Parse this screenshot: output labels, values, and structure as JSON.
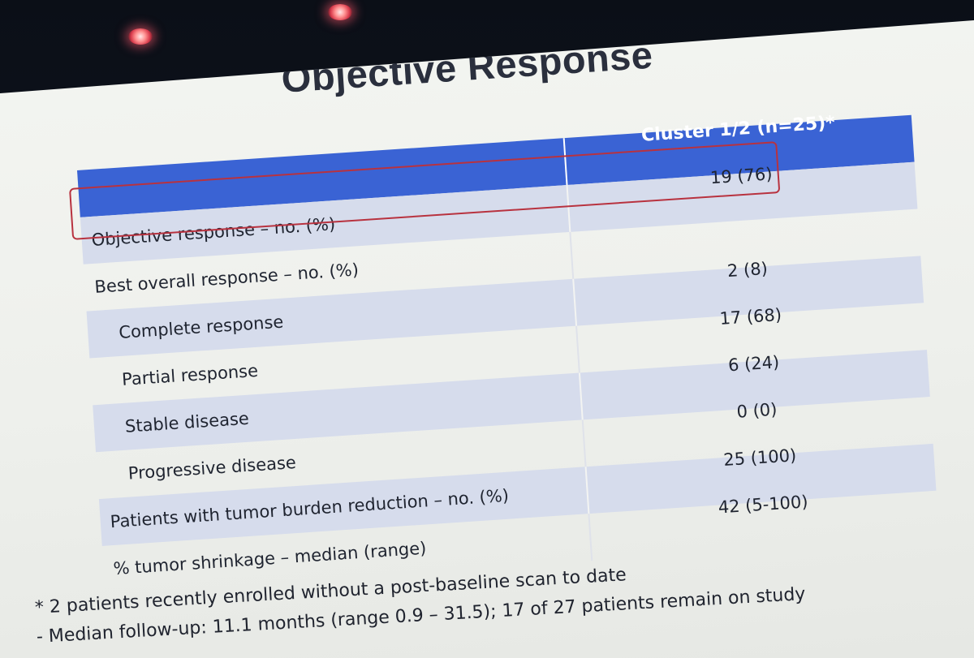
{
  "slide": {
    "title": "Objective Response"
  },
  "table": {
    "column_header": "Cluster 1/2 (n=25)*",
    "rows": [
      {
        "label": "Objective response – no. (%)",
        "value": "19 (76)"
      },
      {
        "label": "Best overall response – no. (%)",
        "value": ""
      },
      {
        "label": "Complete response",
        "value": "2 (8)"
      },
      {
        "label": "Partial response",
        "value": "17 (68)"
      },
      {
        "label": "Stable disease",
        "value": "6 (24)"
      },
      {
        "label": "Progressive disease",
        "value": "0 (0)"
      },
      {
        "label": "Patients with tumor burden reduction – no. (%)",
        "value": "25 (100)"
      },
      {
        "label": "% tumor shrinkage –  median (range)",
        "value": "42 (5-100)"
      }
    ]
  },
  "footnotes": {
    "line1": "* 2 patients recently enrolled without a post-baseline scan to date",
    "line2": "- Median follow-up: 11.1 months (range 0.9 – 31.5); 17 of 27 patients remain on study"
  },
  "colors": {
    "header_blue": "#3a63d4",
    "row_shade": "#d6dcec",
    "highlight_red": "#b8323f"
  }
}
